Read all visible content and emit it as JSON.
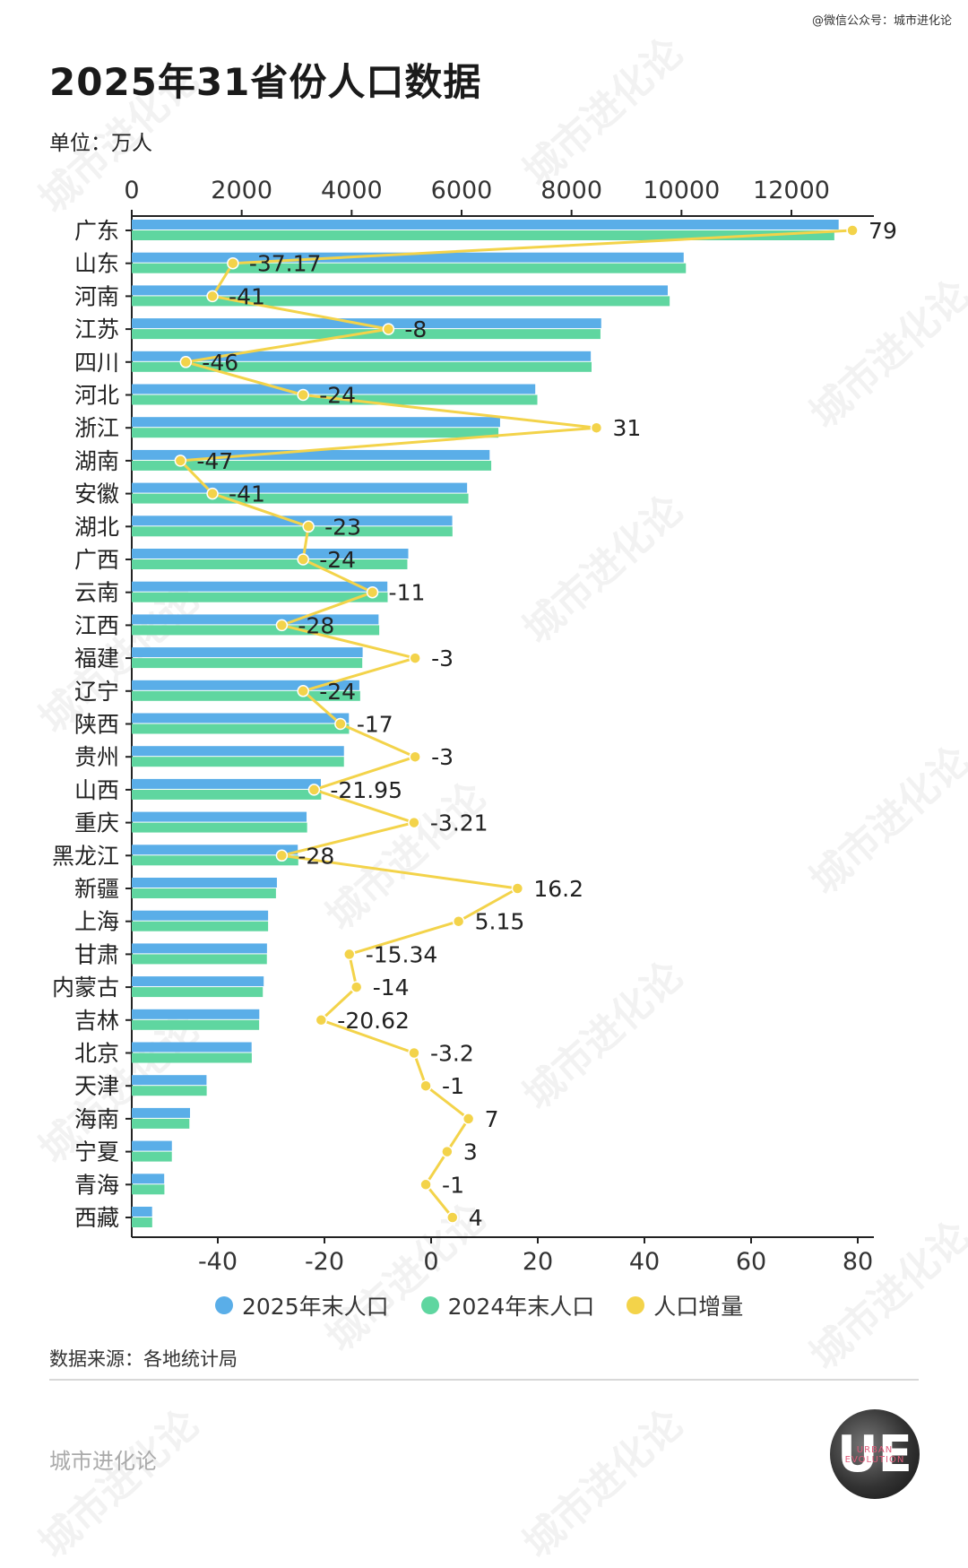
{
  "credit": "@微信公众号：城市进化论",
  "title": "2025年31省份人口数据",
  "unit": "单位：万人",
  "source": "数据来源：各地统计局",
  "brand": "城市进化论",
  "watermark_text": "城市进化论",
  "logo": {
    "mark": "UE",
    "sub": "URBAN EVOLUTION"
  },
  "colors": {
    "pop2025": "#5aaee8",
    "pop2024": "#5fd6a0",
    "increase": "#f3d34a",
    "axis": "#222222",
    "label": "#222222"
  },
  "legend": [
    {
      "label": "2025年末人口",
      "color": "#5aaee8"
    },
    {
      "label": "2024年末人口",
      "color": "#5fd6a0"
    },
    {
      "label": "人口增量",
      "color": "#f3d34a"
    }
  ],
  "chart_data": {
    "type": "bar",
    "orientation": "horizontal",
    "categories": [
      "广东",
      "山东",
      "河南",
      "江苏",
      "四川",
      "河北",
      "浙江",
      "湖南",
      "安徽",
      "湖北",
      "广西",
      "云南",
      "江西",
      "福建",
      "辽宁",
      "陕西",
      "贵州",
      "山西",
      "重庆",
      "黑龙江",
      "新疆",
      "上海",
      "甘肃",
      "内蒙古",
      "吉林",
      "北京",
      "天津",
      "海南",
      "宁夏",
      "青海",
      "西藏"
    ],
    "series": [
      {
        "name": "2025年末人口",
        "axis": "top",
        "values": [
          12859,
          10040,
          9750,
          8540,
          8350,
          7340,
          6700,
          6510,
          6100,
          5830,
          5030,
          4650,
          4490,
          4200,
          4140,
          3950,
          3860,
          3440,
          3180,
          3020,
          2640,
          2480,
          2460,
          2400,
          2320,
          2180,
          1360,
          1060,
          730,
          590,
          370
        ]
      },
      {
        "name": "2024年末人口",
        "axis": "top",
        "values": [
          12780,
          10080,
          9785,
          8526,
          8364,
          7378,
          6670,
          6539,
          6123,
          5834,
          5013,
          4655,
          4502,
          4193,
          4155,
          3953,
          3860,
          3446,
          3190,
          3029,
          2623,
          2480,
          2458,
          2384,
          2317,
          2183,
          1363,
          1048,
          729,
          594,
          372
        ]
      },
      {
        "name": "人口增量",
        "axis": "bottom",
        "type": "line",
        "values": [
          79,
          -37.17,
          -41,
          -8,
          -46,
          -24,
          31,
          -47,
          -41,
          -23,
          -24,
          -11,
          -28,
          -3,
          -24,
          -17,
          -3,
          -21.95,
          -3.21,
          -28,
          16.2,
          5.15,
          -15.34,
          -14,
          -20.62,
          -3.2,
          -1,
          7,
          3,
          -1,
          4
        ]
      }
    ],
    "data_labels": [
      "79",
      "-37.17",
      "-41",
      "-8",
      "-46",
      "-24",
      "31",
      "-47",
      "-41",
      "-23",
      "-24",
      "-11",
      "-28",
      "-3",
      "-24",
      "-17",
      "-3",
      "-21.95",
      "-3.21",
      "-28",
      "16.2",
      "5.15",
      "-15.34",
      "-14",
      "-20.62",
      "-3.2",
      "-1",
      "7",
      "3",
      "-1",
      "4"
    ],
    "top_axis": {
      "ticks": [
        0,
        2000,
        4000,
        6000,
        8000,
        10000,
        12000
      ],
      "range": [
        0,
        13500
      ]
    },
    "bottom_axis": {
      "ticks": [
        -40,
        -20,
        0,
        20,
        40,
        60,
        80
      ],
      "range": [
        -56,
        83
      ]
    },
    "legend_position": "bottom",
    "grid": false
  }
}
